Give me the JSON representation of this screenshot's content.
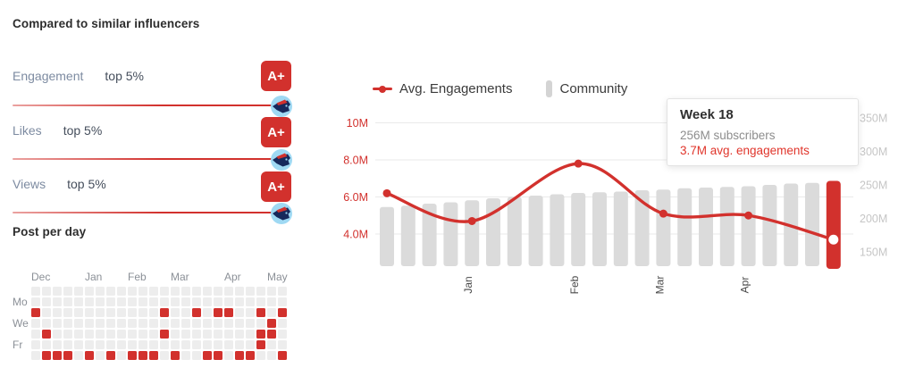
{
  "comparison": {
    "title": "Compared to similar influencers",
    "metrics": [
      {
        "label": "Engagement",
        "detail": "top 5%",
        "grade": "A+"
      },
      {
        "label": "Likes",
        "detail": "top 5%",
        "grade": "A+"
      },
      {
        "label": "Views",
        "detail": "top 5%",
        "grade": "A+"
      }
    ],
    "avatar_icon": "beast-logo-avatar"
  },
  "colors": {
    "red": "#d2312d",
    "tooltip_red": "#e0352b",
    "bar_gray": "#dbdbdb",
    "heat_empty": "#ededed",
    "grid_line": "#eaeaea",
    "left_axis_text": "#d2312d",
    "right_axis_text": "#c6c6c6",
    "month_label_text": "#8b9097"
  },
  "chart_data": [
    {
      "type": "line+bar",
      "legend": [
        {
          "label": "Avg. Engagements",
          "marker": "line-dot",
          "color": "#d2312d"
        },
        {
          "label": "Community",
          "marker": "bar",
          "color": "#dbdbdb"
        }
      ],
      "x_axis": {
        "unit": "week",
        "total_weeks": 22,
        "tick_labels": [
          "Jan",
          "Feb",
          "Mar",
          "Apr"
        ],
        "tick_week_index": [
          4,
          9,
          13,
          17
        ],
        "label_rotation_deg": -90
      },
      "left_axis": {
        "series": "Avg. Engagements",
        "tick_labels": [
          "10M",
          "8.0M",
          "6.0M",
          "4.0M"
        ],
        "tick_values_m": [
          10,
          8,
          6,
          4
        ]
      },
      "right_axis": {
        "series": "Community",
        "tick_labels": [
          "350M",
          "300M",
          "250M",
          "200M",
          "150M"
        ],
        "tick_values_m": [
          350,
          300,
          250,
          200,
          150
        ]
      },
      "series": [
        {
          "name": "Community",
          "type": "bar",
          "unit": "M subscribers",
          "values": [
            217,
            219,
            222,
            224,
            227,
            230,
            232,
            234,
            236,
            238,
            239,
            240,
            242,
            243,
            245,
            246,
            247,
            248,
            250,
            252,
            253,
            256
          ],
          "highlighted_last_bar": true
        },
        {
          "name": "Avg. Engagements",
          "type": "line",
          "unit": "M engagements",
          "marked_points": [
            {
              "week": 0,
              "value": 6.2
            },
            {
              "week": 4,
              "value": 4.7
            },
            {
              "week": 9,
              "value": 7.8
            },
            {
              "week": 13,
              "value": 5.1
            },
            {
              "week": 17,
              "value": 5.0
            },
            {
              "week": 21,
              "value": 3.7
            }
          ]
        }
      ],
      "tooltip": {
        "title": "Week 18",
        "subscribers": "256M subscribers",
        "engagements": "3.7M avg. engagements"
      }
    },
    {
      "type": "heatmap",
      "title": "Post per day",
      "rows": 7,
      "cols": 24,
      "day_labels": [
        {
          "label": "Mo",
          "row": 1
        },
        {
          "label": "We",
          "row": 3
        },
        {
          "label": "Fr",
          "row": 5
        }
      ],
      "month_labels": [
        {
          "label": "Dec",
          "col": 0
        },
        {
          "label": "Jan",
          "col": 5
        },
        {
          "label": "Feb",
          "col": 9
        },
        {
          "label": "Mar",
          "col": 13
        },
        {
          "label": "Apr",
          "col": 18
        },
        {
          "label": "May",
          "col": 22
        }
      ],
      "filled_cells": [
        [
          2,
          0
        ],
        [
          2,
          12
        ],
        [
          2,
          15
        ],
        [
          2,
          17
        ],
        [
          2,
          18
        ],
        [
          2,
          21
        ],
        [
          2,
          23
        ],
        [
          3,
          22
        ],
        [
          4,
          1
        ],
        [
          4,
          12
        ],
        [
          4,
          21
        ],
        [
          4,
          22
        ],
        [
          5,
          21
        ],
        [
          6,
          1
        ],
        [
          6,
          2
        ],
        [
          6,
          3
        ],
        [
          6,
          5
        ],
        [
          6,
          7
        ],
        [
          6,
          9
        ],
        [
          6,
          10
        ],
        [
          6,
          11
        ],
        [
          6,
          13
        ],
        [
          6,
          16
        ],
        [
          6,
          17
        ],
        [
          6,
          19
        ],
        [
          6,
          20
        ],
        [
          6,
          23
        ]
      ]
    }
  ]
}
